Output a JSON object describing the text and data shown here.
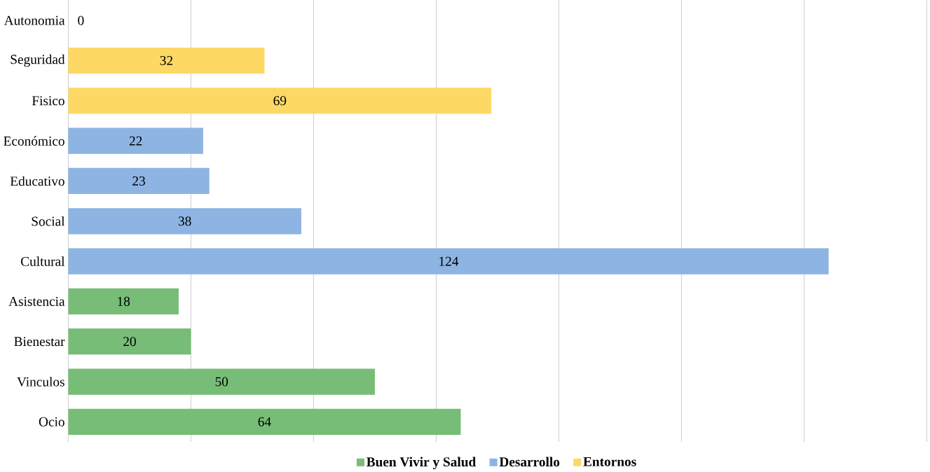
{
  "chart_data": {
    "type": "bar",
    "orientation": "horizontal",
    "categories": [
      "Autonomia",
      "Seguridad",
      "Fisico",
      "Económico",
      "Educativo",
      "Social",
      "Cultural",
      "Asistencia",
      "Bienestar",
      "Vinculos",
      "Ocio"
    ],
    "series": [
      {
        "name": "Buen Vivir y Salud",
        "color": "#77bd77",
        "values": [
          null,
          null,
          null,
          null,
          null,
          null,
          null,
          18,
          20,
          50,
          64
        ]
      },
      {
        "name": "Desarrollo",
        "color": "#8db4e2",
        "values": [
          null,
          null,
          null,
          22,
          23,
          38,
          124,
          null,
          null,
          null,
          null
        ]
      },
      {
        "name": "Entornos",
        "color": "#fdd865",
        "values": [
          0,
          32,
          69,
          null,
          null,
          null,
          null,
          null,
          null,
          null,
          null
        ]
      }
    ],
    "xlim": [
      0,
      140
    ],
    "xticks": [
      {
        "value": 0,
        "label": null
      },
      {
        "value": 20,
        "label": null
      },
      {
        "value": 40,
        "label": null
      },
      {
        "value": 60,
        "label": null
      },
      {
        "value": 80,
        "label": null
      },
      {
        "value": 100,
        "label": null
      },
      {
        "value": 120,
        "label": null
      },
      {
        "value": 140,
        "label": null
      }
    ],
    "tick_labels": "y",
    "grid": "x",
    "data_labels": true,
    "legend": "bottom"
  }
}
